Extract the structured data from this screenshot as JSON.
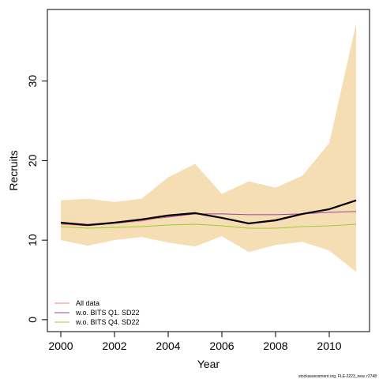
{
  "chart_data": {
    "type": "line",
    "xlabel": "Year",
    "ylabel": "Recruits",
    "xlim": [
      1999.5,
      2011.5
    ],
    "ylim": [
      -1.5,
      39
    ],
    "x_ticks": [
      2000,
      2002,
      2004,
      2006,
      2008,
      2010
    ],
    "y_ticks": [
      0,
      10,
      20,
      30
    ],
    "grid": false,
    "legend_position": "bottom-left",
    "x": [
      2000,
      2001,
      2002,
      2003,
      2004,
      2005,
      2006,
      2007,
      2008,
      2009,
      2010,
      2011
    ],
    "band": {
      "color": "#f5deb3",
      "lower": [
        10.0,
        9.3,
        10.0,
        10.4,
        9.7,
        9.2,
        10.5,
        8.5,
        9.4,
        9.8,
        8.7,
        6.0
      ],
      "upper": [
        15.0,
        15.2,
        14.8,
        15.2,
        17.9,
        19.6,
        15.8,
        17.4,
        16.6,
        18.1,
        22.2,
        37.2
      ]
    },
    "main_line": {
      "color": "#000000",
      "values": [
        12.2,
        11.9,
        12.2,
        12.6,
        13.1,
        13.4,
        12.8,
        12.1,
        12.5,
        13.3,
        13.9,
        15.0
      ]
    },
    "series": [
      {
        "name": "All data",
        "color": "#f08080",
        "values": [
          12.0,
          11.8,
          12.1,
          12.4,
          13.0,
          13.4,
          12.8,
          12.1,
          12.4,
          13.2,
          13.9,
          15.0
        ]
      },
      {
        "name": "w.o. BITS Q1. SD22",
        "color": "#a040a0",
        "values": [
          12.0,
          11.9,
          12.2,
          12.5,
          12.9,
          13.3,
          13.3,
          13.2,
          13.2,
          13.3,
          13.5,
          13.6
        ]
      },
      {
        "name": "w.o. BITS Q4. SD22",
        "color": "#9acd32",
        "values": [
          11.7,
          11.5,
          11.6,
          11.7,
          11.9,
          12.0,
          11.8,
          11.5,
          11.5,
          11.7,
          11.8,
          12.0
        ]
      }
    ]
  },
  "footnote": "stockassessment.org, FLE-2223_new, r2748"
}
